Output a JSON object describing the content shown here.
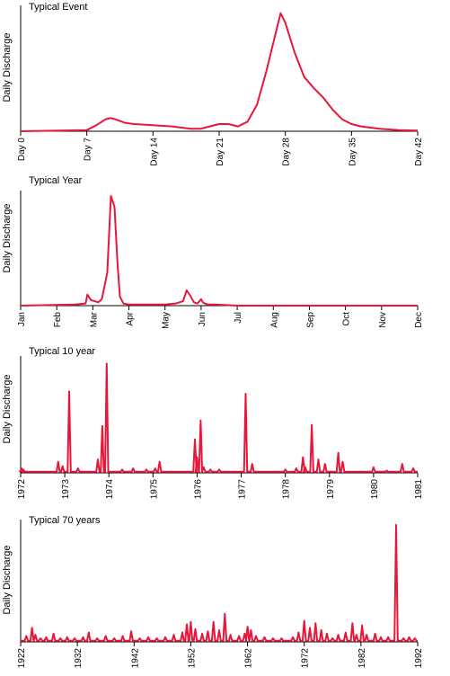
{
  "chart_data": [
    {
      "type": "line",
      "title": "Typical Event",
      "ylabel": "Daily Discharge",
      "xlabel": "",
      "xlim": [
        0,
        42
      ],
      "ticks": [
        {
          "v": 0,
          "label": "Day 0"
        },
        {
          "v": 7,
          "label": "Day 7"
        },
        {
          "v": 14,
          "label": "Day 14"
        },
        {
          "v": 21,
          "label": "Day 21"
        },
        {
          "v": 28,
          "label": "Day 28"
        },
        {
          "v": 35,
          "label": "Day 35"
        },
        {
          "v": 42,
          "label": "Day 42"
        }
      ],
      "ylim": [
        0,
        100
      ],
      "color": "#e8173a",
      "series": [
        {
          "x": [
            0,
            7,
            8,
            9,
            9.5,
            10,
            11,
            12,
            14,
            16,
            18,
            19,
            20,
            21,
            22,
            23,
            24,
            25,
            26,
            27,
            27.5,
            28,
            29,
            30,
            31,
            32,
            33,
            34,
            35,
            36,
            38,
            40,
            42
          ],
          "y": [
            0,
            1,
            5,
            10,
            11,
            10,
            7,
            6,
            5,
            4,
            2,
            2,
            4,
            6,
            6,
            4,
            8,
            22,
            50,
            82,
            98,
            90,
            65,
            45,
            36,
            28,
            18,
            10,
            6,
            4,
            2,
            1,
            0.5
          ]
        }
      ]
    },
    {
      "type": "line",
      "title": "Typical Year",
      "ylabel": "Daily Discharge",
      "xlabel": "",
      "xlim": [
        0,
        11
      ],
      "ticks": [
        {
          "v": 0,
          "label": "Jan"
        },
        {
          "v": 1,
          "label": "Feb"
        },
        {
          "v": 2,
          "label": "Mar"
        },
        {
          "v": 3,
          "label": "Apr"
        },
        {
          "v": 4,
          "label": "May"
        },
        {
          "v": 5,
          "label": "Jun"
        },
        {
          "v": 6,
          "label": "Jul"
        },
        {
          "v": 7,
          "label": "Aug"
        },
        {
          "v": 8,
          "label": "Sep"
        },
        {
          "v": 9,
          "label": "Oct"
        },
        {
          "v": 10,
          "label": "Nov"
        },
        {
          "v": 11,
          "label": "Dec"
        }
      ],
      "ylim": [
        0,
        100
      ],
      "color": "#e8173a",
      "series": [
        {
          "x": [
            0,
            1.5,
            1.8,
            1.85,
            1.95,
            2.05,
            2.15,
            2.25,
            2.4,
            2.5,
            2.6,
            2.68,
            2.75,
            2.85,
            3,
            3.5,
            4,
            4.3,
            4.5,
            4.6,
            4.7,
            4.8,
            4.9,
            5,
            5.05,
            5.1,
            5.2,
            5.4,
            6,
            7,
            8,
            9,
            10,
            11
          ],
          "y": [
            0,
            1,
            2,
            10,
            5,
            4,
            3,
            6,
            30,
            100,
            90,
            40,
            8,
            2,
            1,
            1,
            1,
            2,
            4,
            14,
            9,
            3,
            2,
            6,
            3,
            2,
            1,
            1,
            0,
            0,
            0,
            0,
            0,
            0
          ]
        }
      ]
    },
    {
      "type": "line",
      "title": "Typical 10 year",
      "ylabel": "Daily Discharge",
      "xlabel": "",
      "xlim": [
        1972,
        1981
      ],
      "ticks": [
        {
          "v": 1972,
          "label": "1972"
        },
        {
          "v": 1973,
          "label": "1973"
        },
        {
          "v": 1974,
          "label": "1974"
        },
        {
          "v": 1975,
          "label": "1975"
        },
        {
          "v": 1976,
          "label": "1976"
        },
        {
          "v": 1977,
          "label": "1977"
        },
        {
          "v": 1978,
          "label": "1978"
        },
        {
          "v": 1979,
          "label": "1979"
        },
        {
          "v": 1980,
          "label": "1980"
        },
        {
          "v": 1981,
          "label": "1981"
        }
      ],
      "ylim": [
        0,
        100
      ],
      "color": "#e8173a",
      "series": [
        {
          "peaks": [
            [
              1972.02,
              4
            ],
            [
              1972.06,
              3
            ],
            [
              1972.85,
              10
            ],
            [
              1972.95,
              6
            ],
            [
              1973.1,
              73
            ],
            [
              1973.3,
              4
            ],
            [
              1973.75,
              12
            ],
            [
              1973.85,
              42
            ],
            [
              1973.95,
              98
            ],
            [
              1974.3,
              3
            ],
            [
              1974.55,
              4
            ],
            [
              1974.85,
              3
            ],
            [
              1975.05,
              4
            ],
            [
              1975.15,
              10
            ],
            [
              1975.95,
              30
            ],
            [
              1976.0,
              14
            ],
            [
              1976.08,
              47
            ],
            [
              1976.15,
              5
            ],
            [
              1976.3,
              3
            ],
            [
              1976.5,
              3
            ],
            [
              1977.1,
              71
            ],
            [
              1977.25,
              8
            ],
            [
              1978.0,
              3
            ],
            [
              1978.25,
              4
            ],
            [
              1978.4,
              14
            ],
            [
              1978.45,
              5
            ],
            [
              1978.6,
              43
            ],
            [
              1978.75,
              12
            ],
            [
              1978.9,
              8
            ],
            [
              1979.2,
              18
            ],
            [
              1979.3,
              10
            ],
            [
              1980.0,
              5
            ],
            [
              1980.3,
              2
            ],
            [
              1980.65,
              8
            ],
            [
              1980.9,
              4
            ]
          ]
        }
      ]
    },
    {
      "type": "line",
      "title": "Typical 70 years",
      "ylabel": "Daily Discharge",
      "xlabel": "",
      "xlim": [
        1922,
        1992
      ],
      "ticks": [
        {
          "v": 1922,
          "label": "1922"
        },
        {
          "v": 1932,
          "label": "1932"
        },
        {
          "v": 1942,
          "label": "1942"
        },
        {
          "v": 1952,
          "label": "1952"
        },
        {
          "v": 1962,
          "label": "1962"
        },
        {
          "v": 1972,
          "label": "1972"
        },
        {
          "v": 1982,
          "label": "1982"
        },
        {
          "v": 1992,
          "label": "1992"
        }
      ],
      "ylim": [
        0,
        100
      ],
      "color": "#e8173a",
      "series": [
        {
          "peaks": [
            [
              1923,
              5
            ],
            [
              1924,
              12
            ],
            [
              1924.6,
              6
            ],
            [
              1925.5,
              3
            ],
            [
              1926.5,
              4
            ],
            [
              1927.8,
              7
            ],
            [
              1929,
              3
            ],
            [
              1930.2,
              4
            ],
            [
              1931.5,
              3
            ],
            [
              1933,
              4
            ],
            [
              1934,
              8
            ],
            [
              1935.5,
              3
            ],
            [
              1937,
              5
            ],
            [
              1938.5,
              3
            ],
            [
              1940,
              5
            ],
            [
              1941.5,
              9
            ],
            [
              1943,
              3
            ],
            [
              1944.5,
              4
            ],
            [
              1946,
              3
            ],
            [
              1947.5,
              4
            ],
            [
              1949,
              6
            ],
            [
              1950.5,
              8
            ],
            [
              1951.3,
              15
            ],
            [
              1952,
              17
            ],
            [
              1952.8,
              11
            ],
            [
              1954,
              7
            ],
            [
              1955,
              9
            ],
            [
              1956,
              17
            ],
            [
              1957,
              10
            ],
            [
              1958,
              24
            ],
            [
              1959,
              6
            ],
            [
              1960.5,
              5
            ],
            [
              1961.5,
              7
            ],
            [
              1962,
              13
            ],
            [
              1962.6,
              10
            ],
            [
              1963.5,
              5
            ],
            [
              1965,
              4
            ],
            [
              1966.5,
              3
            ],
            [
              1968,
              3
            ],
            [
              1970,
              4
            ],
            [
              1971,
              8
            ],
            [
              1972,
              18
            ],
            [
              1973,
              12
            ],
            [
              1974,
              16
            ],
            [
              1975,
              10
            ],
            [
              1976,
              7
            ],
            [
              1977,
              3
            ],
            [
              1978,
              6
            ],
            [
              1979.3,
              8
            ],
            [
              1980.5,
              16
            ],
            [
              1981.2,
              6
            ],
            [
              1982.2,
              14
            ],
            [
              1983,
              6
            ],
            [
              1984.5,
              7
            ],
            [
              1985.5,
              4
            ],
            [
              1986.8,
              4
            ],
            [
              1988.2,
              100
            ],
            [
              1989.5,
              3
            ],
            [
              1990.5,
              4
            ],
            [
              1991.5,
              3
            ]
          ]
        }
      ]
    }
  ]
}
